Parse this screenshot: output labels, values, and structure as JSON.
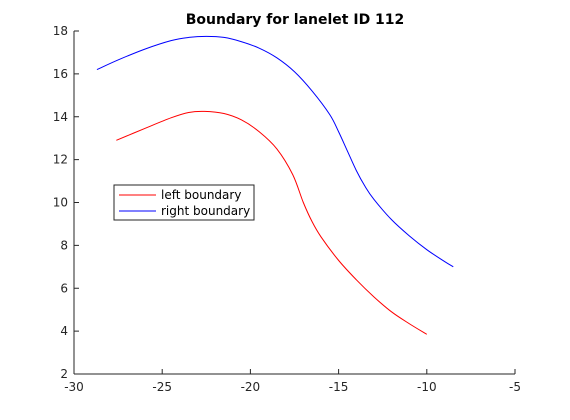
{
  "chart_data": {
    "type": "line",
    "title": "Boundary for lanelet ID 112",
    "xlabel": "",
    "ylabel": "",
    "xlim": [
      -30,
      -5
    ],
    "ylim": [
      2,
      18
    ],
    "xticks": [
      -30,
      -25,
      -20,
      -15,
      -10,
      -5
    ],
    "yticks": [
      2,
      4,
      6,
      8,
      10,
      12,
      14,
      16,
      18
    ],
    "xtick_labels": [
      "-30",
      "-25",
      "-20",
      "-15",
      "-10",
      "-5"
    ],
    "ytick_labels": [
      "2",
      "4",
      "6",
      "8",
      "10",
      "12",
      "14",
      "16",
      "18"
    ],
    "grid": false,
    "legend_position": "left-middle",
    "series": [
      {
        "name": "left boundary",
        "color": "#ff0000",
        "x": [
          -27.6,
          -26.0,
          -24.5,
          -23.5,
          -22.6,
          -21.5,
          -20.5,
          -19.5,
          -18.5,
          -17.6,
          -17.0,
          -16.5,
          -16.0,
          -15.0,
          -14.0,
          -13.0,
          -12.0,
          -11.0,
          -10.0
        ],
        "y": [
          12.9,
          13.45,
          13.95,
          14.2,
          14.25,
          14.15,
          13.85,
          13.3,
          12.5,
          11.3,
          10.0,
          9.1,
          8.4,
          7.3,
          6.4,
          5.6,
          4.9,
          4.35,
          3.85
        ]
      },
      {
        "name": "right boundary",
        "color": "#0000ff",
        "x": [
          -28.7,
          -27.5,
          -26.0,
          -24.5,
          -23.5,
          -22.5,
          -21.5,
          -20.5,
          -19.5,
          -18.5,
          -17.5,
          -16.5,
          -15.5,
          -15.0,
          -14.5,
          -14.0,
          -13.5,
          -13.0,
          -12.0,
          -11.0,
          -10.0,
          -9.0,
          -8.5
        ],
        "y": [
          16.2,
          16.65,
          17.15,
          17.55,
          17.7,
          17.75,
          17.7,
          17.5,
          17.2,
          16.75,
          16.1,
          15.2,
          14.1,
          13.3,
          12.4,
          11.5,
          10.75,
          10.15,
          9.2,
          8.45,
          7.8,
          7.25,
          7.0
        ]
      }
    ]
  }
}
